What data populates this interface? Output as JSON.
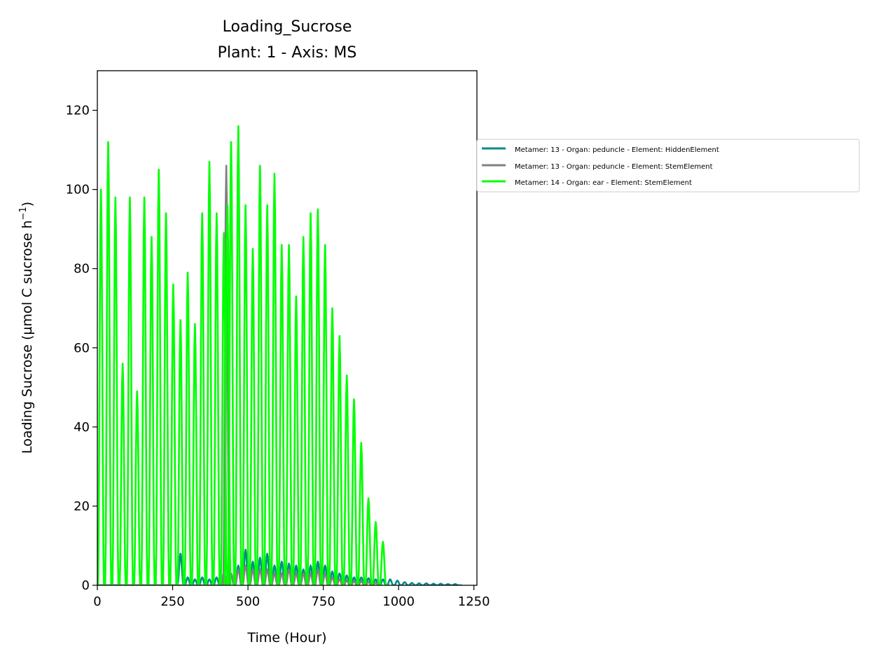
{
  "chart_data": {
    "type": "line",
    "title": "Loading_Sucrose",
    "subtitle": "Plant: 1 - Axis: MS",
    "xlabel": "Time (Hour)",
    "ylabel_prefix": "Loading Sucrose (µmol C sucrose h",
    "ylabel_sup": "−1",
    "ylabel_suffix": ")",
    "xlim": [
      0,
      1260
    ],
    "ylim": [
      0,
      130
    ],
    "xticks": [
      0,
      250,
      500,
      750,
      1000,
      1250
    ],
    "yticks": [
      0,
      20,
      40,
      60,
      80,
      100,
      120
    ],
    "legend_placement": "outside-right",
    "period_hours": 24,
    "series": [
      {
        "name": "Metamer: 13 - Organ: peduncle - Element: HiddenElement",
        "color": "#008b8b",
        "peaks": [
          {
            "x": 276,
            "y": 8
          },
          {
            "x": 300,
            "y": 2
          },
          {
            "x": 324,
            "y": 1.5
          },
          {
            "x": 348,
            "y": 2
          },
          {
            "x": 372,
            "y": 1.5
          },
          {
            "x": 396,
            "y": 2
          },
          {
            "x": 420,
            "y": 3
          },
          {
            "x": 444,
            "y": 2.5
          },
          {
            "x": 468,
            "y": 5
          },
          {
            "x": 492,
            "y": 9
          },
          {
            "x": 516,
            "y": 6
          },
          {
            "x": 540,
            "y": 7
          },
          {
            "x": 564,
            "y": 8
          },
          {
            "x": 588,
            "y": 5
          },
          {
            "x": 612,
            "y": 6
          },
          {
            "x": 636,
            "y": 5.5
          },
          {
            "x": 660,
            "y": 5
          },
          {
            "x": 684,
            "y": 4
          },
          {
            "x": 708,
            "y": 5
          },
          {
            "x": 732,
            "y": 6
          },
          {
            "x": 756,
            "y": 5
          },
          {
            "x": 780,
            "y": 3.5
          },
          {
            "x": 804,
            "y": 3
          },
          {
            "x": 828,
            "y": 2.5
          },
          {
            "x": 852,
            "y": 2
          },
          {
            "x": 876,
            "y": 2
          },
          {
            "x": 900,
            "y": 1.8
          },
          {
            "x": 924,
            "y": 1.5
          },
          {
            "x": 948,
            "y": 1.5
          },
          {
            "x": 972,
            "y": 1.5
          },
          {
            "x": 996,
            "y": 1.2
          },
          {
            "x": 1020,
            "y": 0.8
          },
          {
            "x": 1044,
            "y": 0.6
          },
          {
            "x": 1068,
            "y": 0.5
          },
          {
            "x": 1092,
            "y": 0.5
          },
          {
            "x": 1116,
            "y": 0.4
          },
          {
            "x": 1140,
            "y": 0.4
          },
          {
            "x": 1164,
            "y": 0.3
          },
          {
            "x": 1188,
            "y": 0.3
          }
        ]
      },
      {
        "name": "Metamer: 13 - Organ: peduncle - Element: StemElement",
        "color": "#808080",
        "peaks": [
          {
            "x": 420,
            "y": 3
          },
          {
            "x": 428,
            "y": 106
          },
          {
            "x": 444,
            "y": 3
          },
          {
            "x": 468,
            "y": 4
          },
          {
            "x": 492,
            "y": 5
          },
          {
            "x": 516,
            "y": 4
          },
          {
            "x": 540,
            "y": 4
          },
          {
            "x": 564,
            "y": 4
          },
          {
            "x": 588,
            "y": 3
          },
          {
            "x": 612,
            "y": 3
          },
          {
            "x": 636,
            "y": 4
          },
          {
            "x": 660,
            "y": 3
          },
          {
            "x": 684,
            "y": 3
          },
          {
            "x": 708,
            "y": 3
          },
          {
            "x": 732,
            "y": 4
          },
          {
            "x": 756,
            "y": 3
          },
          {
            "x": 780,
            "y": 2
          },
          {
            "x": 804,
            "y": 1.5
          },
          {
            "x": 828,
            "y": 1.2
          },
          {
            "x": 852,
            "y": 1
          },
          {
            "x": 876,
            "y": 1
          },
          {
            "x": 900,
            "y": 0.8
          },
          {
            "x": 924,
            "y": 0.6
          }
        ]
      },
      {
        "name": "Metamer: 14 - Organ: ear - Element: StemElement",
        "color": "#00ff00",
        "peaks": [
          {
            "x": 12,
            "y": 100
          },
          {
            "x": 36,
            "y": 112
          },
          {
            "x": 60,
            "y": 98
          },
          {
            "x": 84,
            "y": 56
          },
          {
            "x": 108,
            "y": 98
          },
          {
            "x": 132,
            "y": 49
          },
          {
            "x": 156,
            "y": 98
          },
          {
            "x": 180,
            "y": 88
          },
          {
            "x": 204,
            "y": 105
          },
          {
            "x": 228,
            "y": 94
          },
          {
            "x": 252,
            "y": 76
          },
          {
            "x": 276,
            "y": 67
          },
          {
            "x": 300,
            "y": 79
          },
          {
            "x": 324,
            "y": 66
          },
          {
            "x": 348,
            "y": 94
          },
          {
            "x": 372,
            "y": 107
          },
          {
            "x": 396,
            "y": 94
          },
          {
            "x": 420,
            "y": 89
          },
          {
            "x": 432,
            "y": 96
          },
          {
            "x": 444,
            "y": 112
          },
          {
            "x": 468,
            "y": 116
          },
          {
            "x": 492,
            "y": 96
          },
          {
            "x": 516,
            "y": 85
          },
          {
            "x": 540,
            "y": 106
          },
          {
            "x": 564,
            "y": 96
          },
          {
            "x": 588,
            "y": 104
          },
          {
            "x": 612,
            "y": 86
          },
          {
            "x": 636,
            "y": 86
          },
          {
            "x": 660,
            "y": 73
          },
          {
            "x": 684,
            "y": 88
          },
          {
            "x": 708,
            "y": 94
          },
          {
            "x": 732,
            "y": 95
          },
          {
            "x": 756,
            "y": 86
          },
          {
            "x": 780,
            "y": 70
          },
          {
            "x": 804,
            "y": 63
          },
          {
            "x": 828,
            "y": 53
          },
          {
            "x": 852,
            "y": 47
          },
          {
            "x": 876,
            "y": 36
          },
          {
            "x": 900,
            "y": 22
          },
          {
            "x": 924,
            "y": 16
          },
          {
            "x": 948,
            "y": 11
          }
        ]
      }
    ]
  }
}
